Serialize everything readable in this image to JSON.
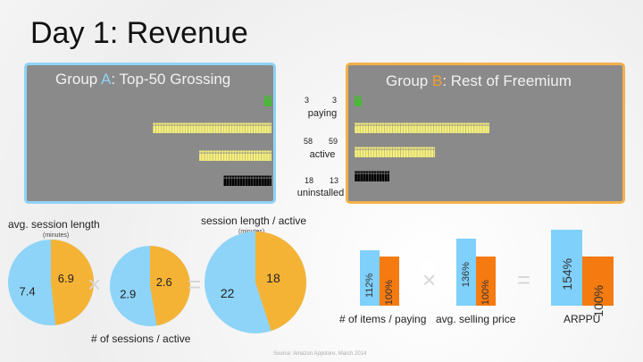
{
  "title": "Day 1: Revenue",
  "group_a": {
    "prefix": "Group ",
    "letter": "A",
    "suffix": ":  Top-50 Grossing",
    "rows": {
      "paying": 3,
      "row2": 44,
      "row3": 27,
      "uninstalled": 18
    }
  },
  "group_b": {
    "prefix": "Group ",
    "letter": "B",
    "suffix": ":  Rest of Freemium",
    "rows": {
      "paying": 3,
      "row2": 50,
      "row3": 30,
      "uninstalled": 13
    }
  },
  "metrics": [
    {
      "a": "3",
      "b": "3",
      "label": "paying"
    },
    {
      "a": "58",
      "b": "59",
      "label": "active"
    },
    {
      "a": "18",
      "b": "13",
      "label": "uninstalled"
    }
  ],
  "pies": [
    {
      "title": "avg. session length",
      "unit": "(minutes)",
      "a": 7.4,
      "b": 6.9,
      "a_label": "7.4",
      "b_label": "6.9"
    },
    {
      "title": "# of sessions / active",
      "a": 2.9,
      "b": 2.6,
      "a_label": "2.9",
      "b_label": "2.6"
    },
    {
      "title": "session length / active",
      "unit": "(minutes)",
      "a": 22,
      "b": 18,
      "a_label": "22",
      "b_label": "18"
    }
  ],
  "bars": [
    {
      "label": "# of items / paying",
      "a": 112,
      "b": 100,
      "a_label": "112%",
      "b_label": "100%"
    },
    {
      "label": "avg. selling price",
      "a": 136,
      "b": 100,
      "a_label": "136%",
      "b_label": "100%"
    },
    {
      "label": "ARPPU",
      "a": 154,
      "b": 100,
      "a_label": "154%",
      "b_label": "100%"
    }
  ],
  "ops": {
    "times": "×",
    "equals": "="
  },
  "source": "Source:  Amazon Appstore, March 2014",
  "colors": {
    "blue": "#8ed4f8",
    "orange": "#f5b335",
    "bar_orange": "#f57a10",
    "bar_blue": "#7fd0fa",
    "green": "#3fbf2a",
    "yellow": "#f7f07a"
  }
}
